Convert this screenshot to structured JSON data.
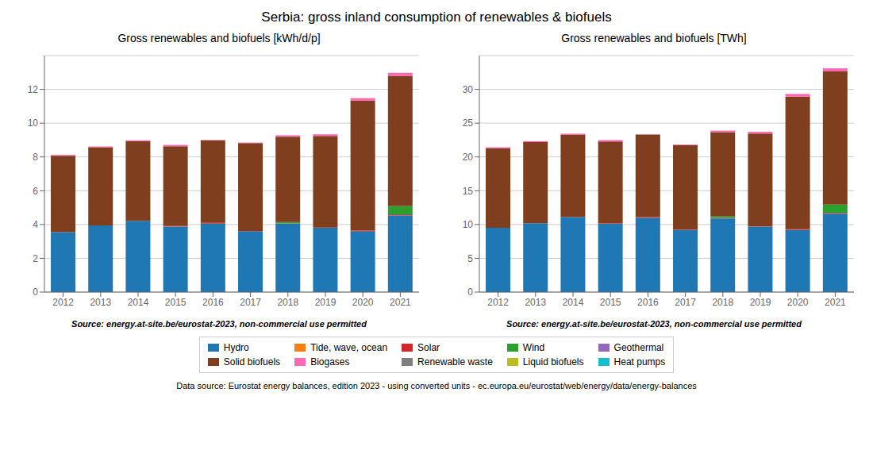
{
  "title": "Serbia: gross inland consumption of renewables & biofuels",
  "annotations": [
    "Data source: Eurostat energy balances, edition 2023 - using converted units - ec.europa.eu/eurostat/web/energy/data/energy-balances"
  ],
  "chart_data": [
    {
      "type": "bar",
      "stacked": true,
      "subtitle": "Gross renewables and biofuels [kWh/d/p]",
      "annotations": [
        "Source: energy.at-site.be/eurostat-2023, non-commercial use permitted"
      ],
      "categories": [
        "2012",
        "2013",
        "2014",
        "2015",
        "2016",
        "2017",
        "2018",
        "2019",
        "2020",
        "2021"
      ],
      "series": [
        {
          "name": "Hydro",
          "color": "#1f77b4",
          "values": [
            3.55,
            3.95,
            4.22,
            3.88,
            4.05,
            3.6,
            4.05,
            3.8,
            3.6,
            4.55
          ]
        },
        {
          "name": "Tide, wave, ocean",
          "color": "#ff7f0e",
          "values": [
            0.0,
            0.0,
            0.0,
            0.0,
            0.0,
            0.0,
            0.0,
            0.0,
            0.0,
            0.0
          ]
        },
        {
          "name": "Solar",
          "color": "#d62728",
          "values": [
            0.0,
            0.0,
            0.0,
            0.03,
            0.05,
            0.02,
            0.02,
            0.02,
            0.05,
            0.05
          ]
        },
        {
          "name": "Wind",
          "color": "#2ca02c",
          "values": [
            0.0,
            0.0,
            0.0,
            0.0,
            0.0,
            0.0,
            0.08,
            0.0,
            0.0,
            0.48
          ]
        },
        {
          "name": "Geothermal",
          "color": "#9467bd",
          "values": [
            0.0,
            0.0,
            0.0,
            0.0,
            0.0,
            0.0,
            0.0,
            0.0,
            0.0,
            0.0
          ]
        },
        {
          "name": "Solid biofuels",
          "color": "#7f3f1f",
          "values": [
            4.52,
            4.62,
            4.72,
            4.72,
            4.88,
            5.2,
            5.05,
            5.42,
            7.68,
            7.72
          ]
        },
        {
          "name": "Biogases",
          "color": "#ff69b4",
          "values": [
            0.05,
            0.05,
            0.05,
            0.08,
            0.02,
            0.03,
            0.08,
            0.1,
            0.15,
            0.18
          ]
        },
        {
          "name": "Renewable waste",
          "color": "#7f7f7f",
          "values": [
            0.0,
            0.0,
            0.0,
            0.0,
            0.0,
            0.0,
            0.0,
            0.0,
            0.0,
            0.0
          ]
        },
        {
          "name": "Liquid biofuels",
          "color": "#bcbd22",
          "values": [
            0.0,
            0.0,
            0.0,
            0.0,
            0.0,
            0.0,
            0.0,
            0.0,
            0.0,
            0.0
          ]
        },
        {
          "name": "Heat pumps",
          "color": "#17becf",
          "values": [
            0.0,
            0.0,
            0.0,
            0.0,
            0.0,
            0.0,
            0.0,
            0.0,
            0.0,
            0.0
          ]
        }
      ],
      "ylim": [
        0,
        14
      ],
      "yticks": [
        0,
        2,
        4,
        6,
        8,
        10,
        12
      ],
      "grid": true,
      "legend": "bottom"
    },
    {
      "type": "bar",
      "stacked": true,
      "subtitle": "Gross renewables and biofuels [TWh]",
      "annotations": [
        "Source: energy.at-site.be/eurostat-2023, non-commercial use permitted"
      ],
      "categories": [
        "2012",
        "2013",
        "2014",
        "2015",
        "2016",
        "2017",
        "2018",
        "2019",
        "2020",
        "2021"
      ],
      "series": [
        {
          "name": "Hydro",
          "color": "#1f77b4",
          "values": [
            9.5,
            10.2,
            11.1,
            10.1,
            11.0,
            9.2,
            10.9,
            9.7,
            9.2,
            11.6
          ]
        },
        {
          "name": "Tide, wave, ocean",
          "color": "#ff7f0e",
          "values": [
            0.0,
            0.0,
            0.0,
            0.0,
            0.0,
            0.0,
            0.0,
            0.0,
            0.0,
            0.0
          ]
        },
        {
          "name": "Solar",
          "color": "#d62728",
          "values": [
            0.0,
            0.0,
            0.0,
            0.08,
            0.12,
            0.06,
            0.06,
            0.05,
            0.12,
            0.12
          ]
        },
        {
          "name": "Wind",
          "color": "#2ca02c",
          "values": [
            0.0,
            0.0,
            0.0,
            0.0,
            0.0,
            0.0,
            0.22,
            0.0,
            0.0,
            1.23
          ]
        },
        {
          "name": "Geothermal",
          "color": "#9467bd",
          "values": [
            0.0,
            0.0,
            0.0,
            0.0,
            0.0,
            0.0,
            0.0,
            0.0,
            0.0,
            0.0
          ]
        },
        {
          "name": "Solid biofuels",
          "color": "#7f3f1f",
          "values": [
            11.8,
            12.0,
            12.2,
            12.1,
            12.2,
            12.5,
            12.5,
            13.7,
            19.6,
            19.7
          ]
        },
        {
          "name": "Biogases",
          "color": "#ff69b4",
          "values": [
            0.14,
            0.14,
            0.14,
            0.22,
            0.05,
            0.08,
            0.22,
            0.27,
            0.4,
            0.46
          ]
        },
        {
          "name": "Renewable waste",
          "color": "#7f7f7f",
          "values": [
            0.0,
            0.0,
            0.0,
            0.0,
            0.0,
            0.0,
            0.0,
            0.0,
            0.0,
            0.0
          ]
        },
        {
          "name": "Liquid biofuels",
          "color": "#bcbd22",
          "values": [
            0.0,
            0.0,
            0.0,
            0.0,
            0.0,
            0.0,
            0.0,
            0.0,
            0.0,
            0.0
          ]
        },
        {
          "name": "Heat pumps",
          "color": "#17becf",
          "values": [
            0.0,
            0.0,
            0.0,
            0.0,
            0.0,
            0.0,
            0.0,
            0.0,
            0.0,
            0.0
          ]
        }
      ],
      "ylim": [
        0,
        35
      ],
      "yticks": [
        0,
        5,
        10,
        15,
        20,
        25,
        30
      ],
      "grid": true,
      "legend": "bottom"
    }
  ]
}
